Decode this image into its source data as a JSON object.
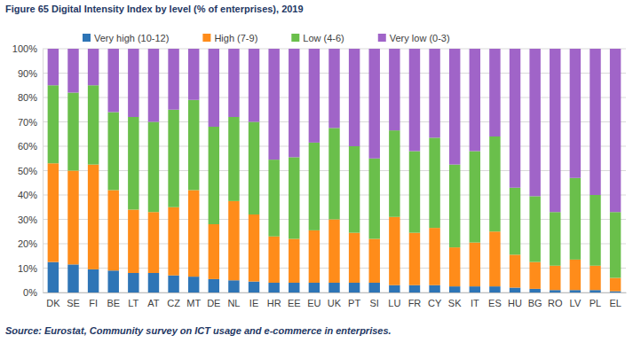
{
  "chart_data": {
    "type": "bar",
    "stacked": true,
    "grid": true,
    "legend": "top",
    "title": "Figure 65 Digital Intensity Index by level (% of enterprises), 2019",
    "annotations": [
      "Source: Eurostat, Community survey on ICT usage and e-commerce in enterprises."
    ],
    "categories": [
      "DK",
      "SE",
      "FI",
      "BE",
      "LT",
      "AT",
      "CZ",
      "MT",
      "DE",
      "NL",
      "IE",
      "HR",
      "EE",
      "EU",
      "UK",
      "PT",
      "SI",
      "LU",
      "FR",
      "CY",
      "SK",
      "IT",
      "ES",
      "HU",
      "BG",
      "RO",
      "LV",
      "PL",
      "EL"
    ],
    "series": [
      {
        "name": "Very high (10-12)",
        "color": "#2e75b6",
        "values": [
          12.5,
          11.5,
          9.5,
          9,
          8,
          8,
          7,
          6.5,
          5.5,
          5,
          4.5,
          4,
          4,
          4,
          4,
          4,
          4,
          3,
          3,
          3,
          2.5,
          2.5,
          2.5,
          2,
          1.5,
          1,
          1,
          1,
          0.5
        ]
      },
      {
        "name": "High (7-9)",
        "color": "#ff8c1a",
        "values": [
          40.5,
          38.5,
          43,
          33,
          26,
          25,
          28,
          35.5,
          22.5,
          32.5,
          27.5,
          19,
          18,
          21.5,
          26,
          20.5,
          18,
          28,
          21.5,
          23.5,
          16,
          18,
          22.5,
          13.5,
          11,
          10,
          12.5,
          10,
          5.5
        ]
      },
      {
        "name": "Low (4-6)",
        "color": "#6abf4b",
        "values": [
          32,
          32,
          32.5,
          32,
          38,
          37,
          40,
          37,
          40,
          34.5,
          38,
          31.5,
          33.5,
          36,
          37.5,
          35.5,
          33,
          35.5,
          33.5,
          37,
          34,
          37.5,
          39,
          27.5,
          27,
          22,
          33.5,
          29,
          27
        ]
      },
      {
        "name": "Very low (0-3)",
        "color": "#a064c8",
        "values": [
          15,
          18,
          15,
          26,
          28,
          30,
          25,
          21,
          32,
          28,
          30,
          45.5,
          44.5,
          38.5,
          32.5,
          40,
          45,
          33.5,
          42,
          36.5,
          47.5,
          42,
          36,
          57,
          60.5,
          67,
          53,
          60,
          67
        ]
      }
    ],
    "ylim": [
      0,
      100
    ],
    "yticks": [
      {
        "value": 0,
        "label": "0%"
      },
      {
        "value": 10,
        "label": "10%"
      },
      {
        "value": 20,
        "label": "20%"
      },
      {
        "value": 30,
        "label": "30%"
      },
      {
        "value": 40,
        "label": "40%"
      },
      {
        "value": 50,
        "label": "50%"
      },
      {
        "value": 60,
        "label": "60%"
      },
      {
        "value": 70,
        "label": "70%"
      },
      {
        "value": 80,
        "label": "80%"
      },
      {
        "value": 90,
        "label": "90%"
      },
      {
        "value": 100,
        "label": "100%"
      }
    ]
  }
}
